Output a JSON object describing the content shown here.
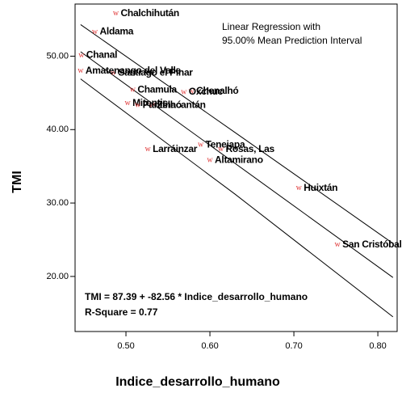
{
  "chart_data": {
    "type": "scatter",
    "x_label": "Indice_desarrollo_humano",
    "y_label": "TMI",
    "annotations": [
      "Linear Regression with",
      "95.00% Mean Prediction Interval"
    ],
    "equation": "TMI = 87.39 + -82.56 * Indice_desarrollo_humano",
    "r_square": "R-Square = 0.77",
    "marker": "w",
    "color": "#e03a3a",
    "line_color": "#000000",
    "x": [
      0.488,
      0.463,
      0.447,
      0.485,
      0.508,
      0.578,
      0.569,
      0.502,
      0.531,
      0.514,
      0.446,
      0.589,
      0.526,
      0.613,
      0.6,
      0.706,
      0.752
    ],
    "values": [
      55.8,
      53.3,
      50.1,
      47.7,
      45.4,
      45.2,
      45.1,
      43.6,
      43.3,
      43.3,
      48.0,
      37.9,
      37.3,
      37.3,
      35.8,
      32.0,
      24.3
    ],
    "point_labels": [
      "Chalchihután",
      "Aldama",
      "Chanal",
      "Santiago el Pinar",
      "Chamula",
      "Chenalhó",
      "Oxchuc",
      "Mitontic",
      "Zinacantán",
      "Pantelhó",
      "Amatenango del Valle",
      "Tenejapa",
      "Larráinzar",
      "Rosas, Las",
      "Altamirano",
      "Huixtán",
      "San Cristóbal de las Casas"
    ],
    "fit_line": {
      "x": [
        0.446,
        0.818
      ],
      "values": [
        50.6,
        19.86
      ]
    },
    "interval_upper": {
      "x": [
        0.446,
        0.63,
        0.818
      ],
      "values": [
        54.3,
        39.6,
        24.5
      ]
    },
    "interval_lower": {
      "x": [
        0.446,
        0.63,
        0.818
      ],
      "values": [
        46.9,
        31.2,
        14.5
      ]
    },
    "xlim": [
      0.4394,
      0.823
    ],
    "ylim": [
      12.5,
      57.1
    ],
    "xticks": [
      {
        "value": 0.5,
        "label": "0.50"
      },
      {
        "value": 0.6,
        "label": "0.60"
      },
      {
        "value": 0.7,
        "label": "0.70"
      },
      {
        "value": 0.8,
        "label": "0.80"
      }
    ],
    "yticks": [
      {
        "value": 20,
        "label": "20.00"
      },
      {
        "value": 30,
        "label": "30.00"
      },
      {
        "value": 40,
        "label": "40.00"
      },
      {
        "value": 50,
        "label": "50.00"
      }
    ]
  }
}
